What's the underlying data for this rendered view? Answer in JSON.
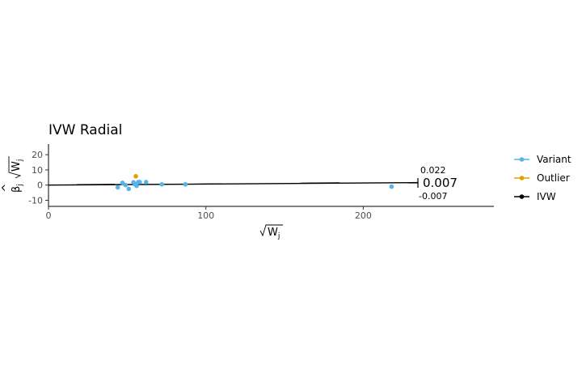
{
  "chart_data": {
    "type": "scatter",
    "title": "IVW Radial",
    "xlabel": "Wj",
    "ylabel": "βj Wj",
    "xlim": [
      0,
      283
    ],
    "ylim": [
      -14,
      27
    ],
    "x_ticks": [
      0,
      100,
      200
    ],
    "y_ticks": [
      -10,
      0,
      10,
      20
    ],
    "grid": false,
    "legend_position": "right",
    "colors": {
      "variant": "#56b4e9",
      "outlier": "#e69f00",
      "ivw": "#000000"
    },
    "series": [
      {
        "name": "Variant",
        "points": [
          [
            44,
            -1.5
          ],
          [
            47,
            1.5
          ],
          [
            49,
            0
          ],
          [
            51,
            -2.5
          ],
          [
            54,
            1.8
          ],
          [
            55,
            0.5
          ],
          [
            56,
            -0.5
          ],
          [
            57,
            2.0
          ],
          [
            58,
            2.0
          ],
          [
            62,
            2.0
          ],
          [
            72,
            0.5
          ],
          [
            87,
            0.5
          ],
          [
            218,
            -1.0
          ]
        ]
      },
      {
        "name": "Outlier",
        "points": [
          [
            55.5,
            5.8
          ]
        ]
      },
      {
        "name": "IVW",
        "slope": 0.007
      }
    ],
    "annotations": {
      "estimate": "0.007",
      "upper": "0.022",
      "lower": "-0.007"
    }
  }
}
